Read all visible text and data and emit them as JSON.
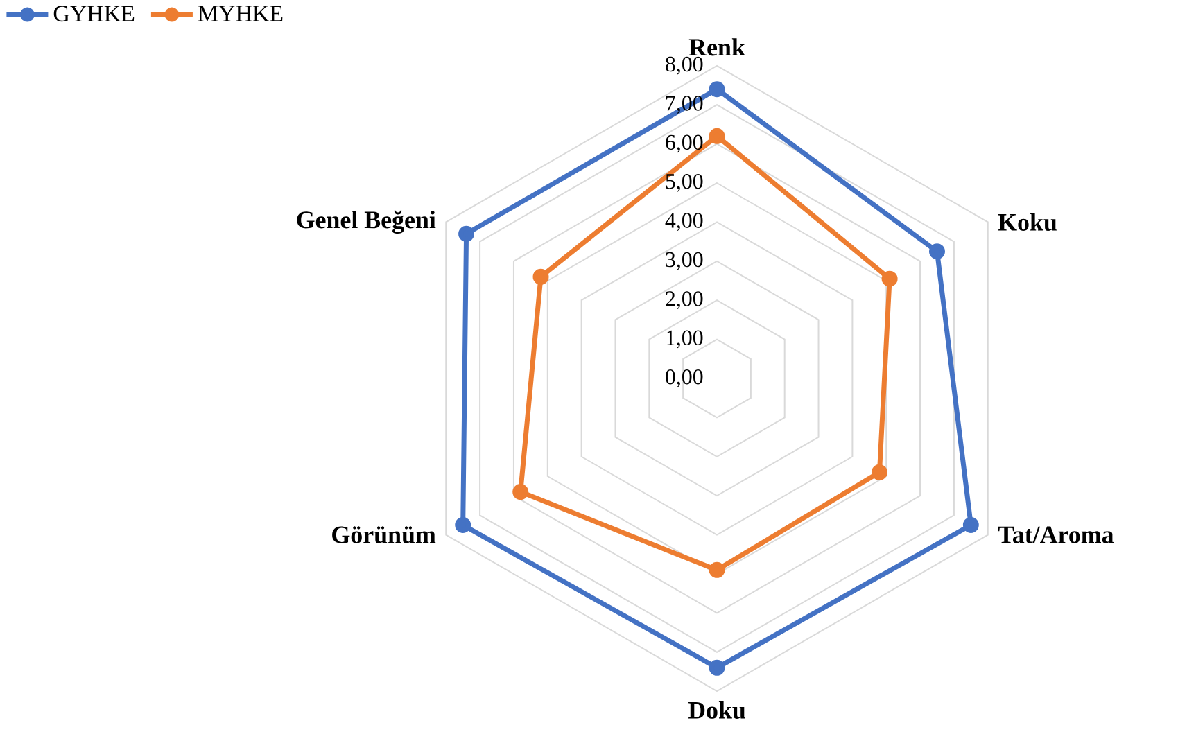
{
  "chart_data": {
    "type": "radar",
    "categories": [
      "Renk",
      "Koku",
      "Tat/Aroma",
      "Doku",
      "Görünüm",
      "Genel Beğeni"
    ],
    "series": [
      {
        "name": "GYHKE",
        "color": "#4472c4",
        "values": [
          7.4,
          6.5,
          7.5,
          7.4,
          7.5,
          7.4
        ]
      },
      {
        "name": "MYHKE",
        "color": "#ed7d31",
        "values": [
          6.2,
          5.1,
          4.8,
          4.9,
          5.8,
          5.2
        ]
      }
    ],
    "ylim": [
      0,
      8
    ],
    "yticks": [
      {
        "value": 0,
        "label": "0,00"
      },
      {
        "value": 1,
        "label": "1,00"
      },
      {
        "value": 2,
        "label": "2,00"
      },
      {
        "value": 3,
        "label": "3,00"
      },
      {
        "value": 4,
        "label": "4,00"
      },
      {
        "value": 5,
        "label": "5,00"
      },
      {
        "value": 6,
        "label": "6,00"
      },
      {
        "value": 7,
        "label": "7,00"
      },
      {
        "value": 8,
        "label": "8,00"
      }
    ],
    "grid": true,
    "legend": "top left",
    "marker": "circle"
  }
}
